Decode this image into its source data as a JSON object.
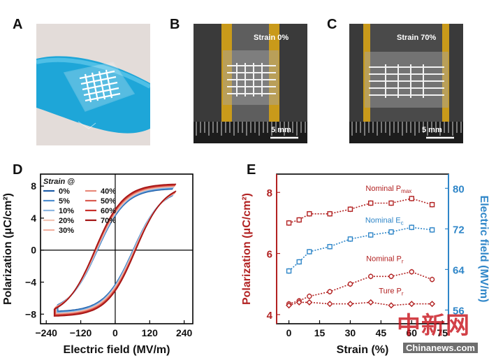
{
  "panels": {
    "A": "A",
    "B": "B",
    "C": "C",
    "D": "D",
    "E": "E"
  },
  "photos": {
    "B": {
      "strain_label": "Strain 0%",
      "scale": "5 mm"
    },
    "C": {
      "strain_label": "Strain 70%",
      "scale": "5 mm"
    }
  },
  "colors": {
    "dark_red": "#b22222",
    "blue": "#1e6fb8",
    "ecf_blue": "#2f86c8"
  },
  "chart_data": [
    {
      "id": "D",
      "type": "line",
      "xlabel": "Electric field (MV/m)",
      "ylabel": "Polarization (μC/cm²)",
      "xlim": [
        -260,
        270
      ],
      "ylim": [
        -9.2,
        9.5
      ],
      "xticks": [
        -240,
        -120,
        0,
        120,
        240
      ],
      "xtick_labels": [
        "−240",
        "−120",
        "0",
        "120",
        "240"
      ],
      "yticks": [
        8,
        4,
        0,
        -4,
        -8
      ],
      "ytick_labels": [
        "8",
        "4",
        "0",
        "−4",
        "−8"
      ],
      "legend_title": "Strain @",
      "legend_position": "top-left",
      "series": [
        {
          "name": "0%",
          "color": "#1f5da8",
          "emax": 200,
          "pmax": 7.2,
          "pr": 4.3,
          "ec": 62
        },
        {
          "name": "5%",
          "color": "#4f8fd0",
          "emax": 202,
          "pmax": 7.3,
          "pr": 4.4,
          "ec": 63
        },
        {
          "name": "10%",
          "color": "#8fb8e2",
          "emax": 204,
          "pmax": 7.4,
          "pr": 4.5,
          "ec": 64
        },
        {
          "name": "20%",
          "color": "#f3c4b4",
          "emax": 206,
          "pmax": 7.5,
          "pr": 4.6,
          "ec": 66
        },
        {
          "name": "30%",
          "color": "#f2b0a0",
          "emax": 207,
          "pmax": 7.55,
          "pr": 4.7,
          "ec": 67
        },
        {
          "name": "40%",
          "color": "#e8897a",
          "emax": 208,
          "pmax": 7.6,
          "pr": 4.8,
          "ec": 68
        },
        {
          "name": "50%",
          "color": "#d95b50",
          "emax": 209,
          "pmax": 7.65,
          "pr": 4.9,
          "ec": 69
        },
        {
          "name": "60%",
          "color": "#c8302b",
          "emax": 210,
          "pmax": 7.7,
          "pr": 5.0,
          "ec": 70
        },
        {
          "name": "70%",
          "color": "#a31515",
          "emax": 212,
          "pmax": 7.8,
          "pr": 5.1,
          "ec": 71
        }
      ]
    },
    {
      "id": "E",
      "type": "line",
      "xlabel": "Strain (%)",
      "ylabel_left": "Polarization (μC/cm²)",
      "ylabel_right": "Electric field (MV/m)",
      "xlim": [
        -6,
        78
      ],
      "ylim_left": [
        3.7,
        8.6
      ],
      "ylim_right": [
        53.3,
        82.8
      ],
      "xticks": [
        0,
        15,
        30,
        45,
        60,
        75
      ],
      "yticks_left": [
        4,
        6,
        8
      ],
      "yticks_right": [
        56,
        64,
        72,
        80
      ],
      "x": [
        0,
        5,
        10,
        20,
        30,
        40,
        50,
        60,
        70
      ],
      "series": [
        {
          "name": "Nominal P",
          "sub": "max",
          "axis": "left",
          "color": "#b22222",
          "marker": "square",
          "values": [
            7.0,
            7.1,
            7.3,
            7.3,
            7.45,
            7.65,
            7.65,
            7.8,
            7.6
          ]
        },
        {
          "name": "Nominal E",
          "sub": "c",
          "axis": "right",
          "color": "#2f86c8",
          "marker": "square",
          "values": [
            63.7,
            65.5,
            67.5,
            68.5,
            70.0,
            70.8,
            71.4,
            72.3,
            71.8
          ]
        },
        {
          "name": "Nominal P",
          "sub": "r",
          "axis": "left",
          "color": "#b22222",
          "marker": "circle",
          "values": [
            4.35,
            4.45,
            4.6,
            4.75,
            5.0,
            5.25,
            5.25,
            5.4,
            5.15
          ]
        },
        {
          "name": "Ture P",
          "sub": "r",
          "axis": "left",
          "color": "#b22222",
          "marker": "diamond",
          "values": [
            4.3,
            4.4,
            4.4,
            4.35,
            4.35,
            4.4,
            4.3,
            4.35,
            4.35
          ]
        }
      ]
    }
  ],
  "watermark": {
    "top": "中新网",
    "bottom": "Chinanews.com"
  }
}
